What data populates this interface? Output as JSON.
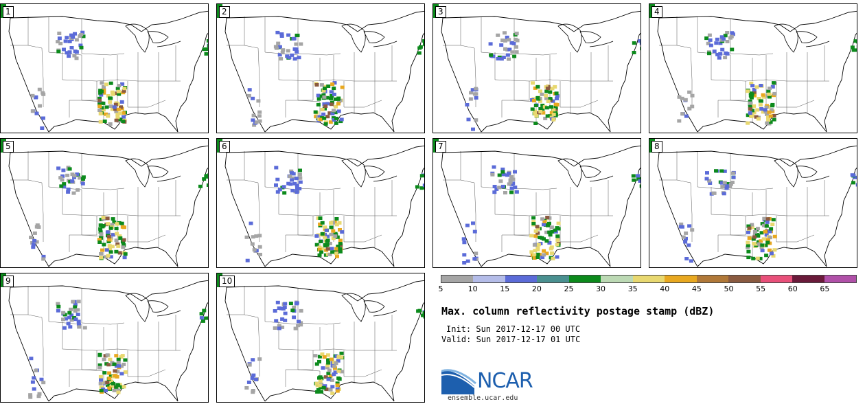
{
  "figure": {
    "title": "Max. column reflectivity postage stamp (dBZ)",
    "init": "Init: Sun 2017-12-17 00 UTC",
    "valid": "Valid: Sun 2017-12-17 01 UTC",
    "org": "NCAR",
    "url": "ensemble.ucar.edu"
  },
  "panels": [
    {
      "label": "1"
    },
    {
      "label": "2"
    },
    {
      "label": "3"
    },
    {
      "label": "4"
    },
    {
      "label": "5"
    },
    {
      "label": "6"
    },
    {
      "label": "7"
    },
    {
      "label": "8"
    },
    {
      "label": "9"
    },
    {
      "label": "10"
    }
  ],
  "legend": {
    "unit": "dBZ",
    "ticks": [
      "5",
      "10",
      "15",
      "20",
      "25",
      "30",
      "35",
      "40",
      "45",
      "50",
      "55",
      "60",
      "65"
    ],
    "colors": [
      "#a5a5a5",
      "#b4bce8",
      "#5b6bd8",
      "#4a9090",
      "#0c8a1c",
      "#bcd9b4",
      "#e8d870",
      "#e8a820",
      "#b07838",
      "#8a5a40",
      "#e8507a",
      "#6a1a3a",
      "#b050a8"
    ]
  }
}
